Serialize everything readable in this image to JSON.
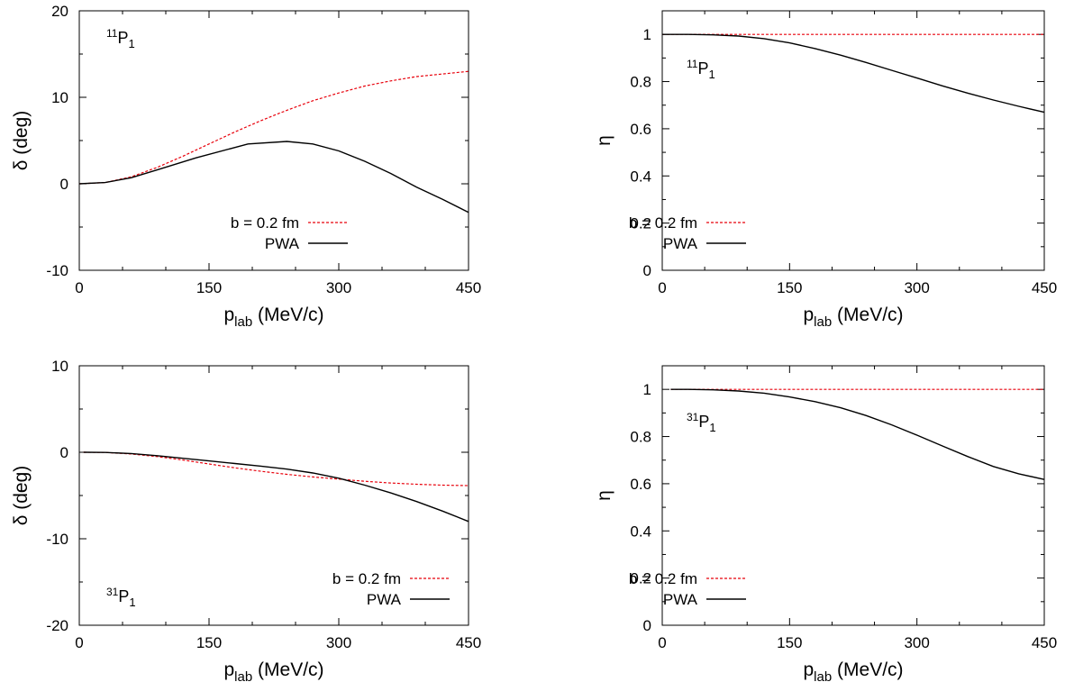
{
  "chart_data": [
    {
      "type": "line",
      "panel": "top-left",
      "wave": {
        "sup": "11",
        "main": "P",
        "sub": "1"
      },
      "wave_position": "top-left",
      "xlabel": {
        "main": "p",
        "sub": "lab",
        "rest": " (MeV/c)"
      },
      "ylabel": "δ (deg)",
      "xlim": [
        0,
        450
      ],
      "ylim": [
        -10,
        20
      ],
      "xticks": [
        0,
        150,
        300,
        450
      ],
      "yticks": [
        -10,
        0,
        10,
        20
      ],
      "xticklabels": [
        "0",
        "150",
        "300",
        "450"
      ],
      "yticklabels": [
        "-10",
        "0",
        "10",
        "20"
      ],
      "legend_placement": "lower-right",
      "series": [
        {
          "name": "b = 0.2 fm",
          "color": "#e8000b",
          "dash": true,
          "x": [
            0,
            30,
            60,
            90,
            120,
            150,
            180,
            210,
            240,
            270,
            300,
            330,
            360,
            390,
            420,
            450
          ],
          "y": [
            0,
            0.15,
            0.8,
            1.9,
            3.2,
            4.6,
            6.0,
            7.3,
            8.5,
            9.6,
            10.5,
            11.3,
            11.9,
            12.4,
            12.7,
            13.0
          ]
        },
        {
          "name": "PWA",
          "color": "#000000",
          "dash": false,
          "x": [
            0,
            30,
            60,
            90,
            135,
            195,
            240,
            270,
            300,
            330,
            360,
            390,
            420,
            450
          ],
          "y": [
            0,
            0.15,
            0.7,
            1.6,
            3.0,
            4.6,
            4.9,
            4.6,
            3.8,
            2.6,
            1.2,
            -0.4,
            -1.8,
            -3.3
          ]
        }
      ]
    },
    {
      "type": "line",
      "panel": "top-right",
      "wave": {
        "sup": "11",
        "main": "P",
        "sub": "1"
      },
      "wave_position": "top-left",
      "xlabel": {
        "main": "p",
        "sub": "lab",
        "rest": " (MeV/c)"
      },
      "ylabel": "η",
      "xlim": [
        0,
        450
      ],
      "ylim": [
        0,
        1.1
      ],
      "xticks": [
        0,
        150,
        300,
        450
      ],
      "yticks": [
        0,
        0.2,
        0.4,
        0.6,
        0.8,
        1
      ],
      "xticklabels": [
        "0",
        "150",
        "300",
        "450"
      ],
      "yticklabels": [
        "0",
        "0.2",
        "0.4",
        "0.6",
        "0.8",
        "1"
      ],
      "legend_placement": "lower-left",
      "series": [
        {
          "name": "b = 0.2 fm",
          "color": "#e8000b",
          "dash": true,
          "x": [
            0,
            450
          ],
          "y": [
            1,
            1
          ]
        },
        {
          "name": "PWA",
          "color": "#000000",
          "dash": false,
          "x": [
            0,
            30,
            60,
            90,
            120,
            150,
            180,
            210,
            240,
            270,
            300,
            330,
            360,
            390,
            420,
            450
          ],
          "y": [
            1,
            1,
            0.998,
            0.993,
            0.982,
            0.964,
            0.94,
            0.912,
            0.881,
            0.848,
            0.815,
            0.782,
            0.751,
            0.722,
            0.695,
            0.67
          ]
        }
      ]
    },
    {
      "type": "line",
      "panel": "bottom-left",
      "wave": {
        "sup": "31",
        "main": "P",
        "sub": "1"
      },
      "wave_position": "bottom-left",
      "xlabel": {
        "main": "p",
        "sub": "lab",
        "rest": " (MeV/c)"
      },
      "ylabel": "δ (deg)",
      "xlim": [
        0,
        450
      ],
      "ylim": [
        -20,
        10
      ],
      "xticks": [
        0,
        150,
        300,
        450
      ],
      "yticks": [
        -20,
        -10,
        0,
        10
      ],
      "xticklabels": [
        "0",
        "150",
        "300",
        "450"
      ],
      "yticklabels": [
        "-20",
        "-10",
        "0",
        "10"
      ],
      "legend_placement": "lower-right",
      "series": [
        {
          "name": "b = 0.2 fm",
          "color": "#e8000b",
          "dash": true,
          "x": [
            5,
            30,
            60,
            90,
            120,
            150,
            180,
            210,
            240,
            270,
            300,
            330,
            360,
            390,
            420,
            450
          ],
          "y": [
            0,
            -0.02,
            -0.2,
            -0.5,
            -0.9,
            -1.35,
            -1.8,
            -2.2,
            -2.55,
            -2.85,
            -3.1,
            -3.35,
            -3.55,
            -3.7,
            -3.8,
            -3.85
          ]
        },
        {
          "name": "PWA",
          "color": "#000000",
          "dash": false,
          "x": [
            5,
            30,
            60,
            90,
            120,
            150,
            180,
            210,
            240,
            270,
            300,
            330,
            360,
            390,
            420,
            450
          ],
          "y": [
            0,
            -0.02,
            -0.15,
            -0.4,
            -0.7,
            -1.0,
            -1.3,
            -1.6,
            -1.95,
            -2.4,
            -3.0,
            -3.8,
            -4.7,
            -5.7,
            -6.8,
            -8.0
          ]
        }
      ]
    },
    {
      "type": "line",
      "panel": "bottom-right",
      "wave": {
        "sup": "31",
        "main": "P",
        "sub": "1"
      },
      "wave_position": "top-left",
      "xlabel": {
        "main": "p",
        "sub": "lab",
        "rest": " (MeV/c)"
      },
      "ylabel": "η",
      "xlim": [
        0,
        450
      ],
      "ylim": [
        0,
        1.1
      ],
      "xticks": [
        0,
        150,
        300,
        450
      ],
      "yticks": [
        0,
        0.2,
        0.4,
        0.6,
        0.8,
        1
      ],
      "xticklabels": [
        "0",
        "150",
        "300",
        "450"
      ],
      "yticklabels": [
        "0",
        "0.2",
        "0.4",
        "0.6",
        "0.8",
        "1"
      ],
      "legend_placement": "lower-left",
      "series": [
        {
          "name": "b = 0.2 fm",
          "color": "#e8000b",
          "dash": true,
          "x": [
            10,
            450
          ],
          "y": [
            1,
            1
          ]
        },
        {
          "name": "PWA",
          "color": "#000000",
          "dash": false,
          "x": [
            10,
            30,
            60,
            90,
            120,
            150,
            180,
            210,
            240,
            270,
            300,
            330,
            360,
            390,
            420,
            450
          ],
          "y": [
            1,
            1,
            0.998,
            0.993,
            0.984,
            0.968,
            0.948,
            0.922,
            0.889,
            0.85,
            0.806,
            0.76,
            0.715,
            0.673,
            0.642,
            0.618
          ]
        }
      ]
    }
  ]
}
